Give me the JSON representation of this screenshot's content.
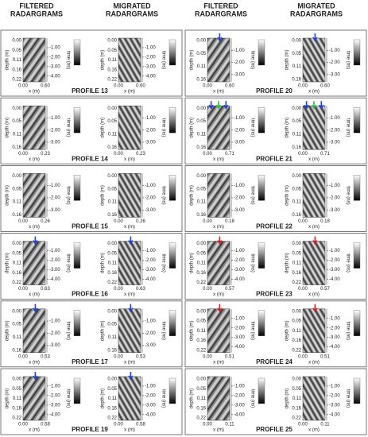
{
  "headers": {
    "filtered": [
      "FILTERED",
      "RADARGRAMS"
    ],
    "migrated": [
      "MIGRATED",
      "RADARGRAMS"
    ]
  },
  "axis_labels": {
    "depth": "depth (m)",
    "time": "time (ns)",
    "x": "x (m)"
  },
  "columns": [
    {
      "panels": [
        {
          "profile": "PROFILE 13",
          "depth_ticks": [
            "0.00",
            "0.05",
            "0.11",
            "0.16",
            "0.22"
          ],
          "time_ticks": [
            "-1.00",
            "-2.00",
            "-3.00",
            "-4.00"
          ],
          "x_ticks": [
            "0.00",
            "0.60"
          ],
          "arrows": []
        },
        {
          "profile": "PROFILE 14",
          "depth_ticks": [
            "0.00",
            "0.05",
            "0.11",
            "0.16"
          ],
          "time_ticks": [
            "-1.00",
            "-2.00",
            "-3.00"
          ],
          "x_ticks": [
            "0.00",
            "0.23"
          ],
          "arrows": []
        },
        {
          "profile": "PROFILE 15",
          "depth_ticks": [
            "0.00",
            "0.05",
            "0.11",
            "0.16"
          ],
          "time_ticks": [
            "-1.00",
            "-2.00",
            "-3.00"
          ],
          "x_ticks": [
            "0.00",
            "0.26"
          ],
          "arrows": []
        },
        {
          "profile": "PROFILE 16",
          "depth_ticks": [
            "0.00",
            "0.05",
            "0.11",
            "0.16",
            "0.22"
          ],
          "time_ticks": [
            "-1.00",
            "-2.00",
            "-3.00",
            "-4.00"
          ],
          "x_ticks": [
            "0.00",
            "0.63"
          ],
          "arrows": [
            "#1f3fd0"
          ]
        },
        {
          "profile": "PROFILE 17",
          "depth_ticks": [
            "0.00",
            "0.05",
            "0.11",
            "0.16"
          ],
          "time_ticks": [
            "-1.00",
            "-2.00",
            "-3.00"
          ],
          "x_ticks": [
            "0.00",
            "0.53"
          ],
          "arrows": [
            "#1f3fd0"
          ]
        },
        {
          "profile": "PROFILE 19",
          "depth_ticks": [
            "0.00",
            "0.05",
            "0.11",
            "0.16",
            "0.22"
          ],
          "time_ticks": [
            "-1.00",
            "-2.00",
            "-3.00",
            "-4.00"
          ],
          "x_ticks": [
            "0.00",
            "0.58"
          ],
          "arrows": [
            "#1f3fd0"
          ]
        }
      ]
    },
    {
      "panels": [
        {
          "profile": "PROFILE 20",
          "depth_ticks": [
            "0.00",
            "0.05",
            "0.11",
            "0.16"
          ],
          "time_ticks": [
            "-1.00",
            "-2.00",
            "-3.00"
          ],
          "x_ticks": [
            "0.00",
            "0.60"
          ],
          "arrows": [
            "#1f3fd0"
          ]
        },
        {
          "profile": "PROFILE 21",
          "depth_ticks": [
            "0.00",
            "0.05",
            "0.11",
            "0.16"
          ],
          "time_ticks": [
            "-1.00",
            "-2.00",
            "-3.00"
          ],
          "x_ticks": [
            "0.00",
            "0.71"
          ],
          "arrows": [
            "#1f3fd0",
            "#2fb84a",
            "#1f3fd0"
          ]
        },
        {
          "profile": "PROFILE 22",
          "depth_ticks": [
            "0.00",
            "0.05",
            "0.11",
            "0.16"
          ],
          "time_ticks": [
            "-1.00",
            "-2.00",
            "-3.00"
          ],
          "x_ticks": [
            "0.00",
            "0.18"
          ],
          "arrows": []
        },
        {
          "profile": "PROFILE 23",
          "depth_ticks": [
            "0.00",
            "0.05",
            "0.11",
            "0.16",
            "0.22"
          ],
          "time_ticks": [
            "-1.00",
            "-2.00",
            "-3.00",
            "-4.00"
          ],
          "x_ticks": [
            "0.00",
            "0.57"
          ],
          "arrows": [
            "#d62020"
          ]
        },
        {
          "profile": "PROFILE 24",
          "depth_ticks": [
            "0.00",
            "0.05",
            "0.11",
            "0.16",
            "0.22"
          ],
          "time_ticks": [
            "-1.00",
            "-2.00",
            "-3.00",
            "-4.00"
          ],
          "x_ticks": [
            "0.00",
            "0.51"
          ],
          "arrows": [
            "#d62020"
          ]
        },
        {
          "profile": "PROFILE 25",
          "depth_ticks": [
            "0.00",
            "0.05",
            "0.11",
            "0.16",
            "0.22"
          ],
          "time_ticks": [
            "-1.00",
            "-2.00",
            "-3.00",
            "-4.00"
          ],
          "x_ticks": [
            "0.00",
            "0.11"
          ],
          "arrows": []
        }
      ]
    }
  ]
}
